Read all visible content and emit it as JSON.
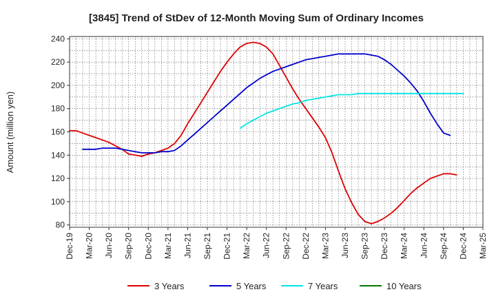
{
  "chart_data": {
    "type": "line",
    "title": "[3845]  Trend of StDev of 12-Month Moving Sum of Ordinary Incomes",
    "ylabel": "Amount (million yen)",
    "xlabel": "",
    "ylim": [
      78,
      242
    ],
    "yticks": [
      80,
      100,
      120,
      140,
      160,
      180,
      200,
      220,
      240
    ],
    "x_tick_labels": [
      "Dec-19",
      "Mar-20",
      "Jun-20",
      "Sep-20",
      "Dec-20",
      "Mar-21",
      "Jun-21",
      "Sep-21",
      "Dec-21",
      "Mar-22",
      "Jun-22",
      "Sep-22",
      "Dec-22",
      "Mar-23",
      "Jun-23",
      "Sep-23",
      "Dec-23",
      "Mar-24",
      "Jun-24",
      "Sep-24",
      "Dec-24",
      "Mar-25"
    ],
    "grid": true,
    "legend_position": "bottom",
    "series": [
      {
        "name": "3 Years",
        "color": "#dd0000",
        "points": [
          [
            "Dec-19",
            161
          ],
          [
            "Jan-20",
            161
          ],
          [
            "Feb-20",
            159
          ],
          [
            "Mar-20",
            157
          ],
          [
            "Apr-20",
            155
          ],
          [
            "May-20",
            153
          ],
          [
            "Jun-20",
            151
          ],
          [
            "Jul-20",
            148
          ],
          [
            "Aug-20",
            145
          ],
          [
            "Sep-20",
            141
          ],
          [
            "Oct-20",
            140
          ],
          [
            "Nov-20",
            139
          ],
          [
            "Dec-20",
            141
          ],
          [
            "Jan-21",
            142
          ],
          [
            "Feb-21",
            144
          ],
          [
            "Mar-21",
            146
          ],
          [
            "Apr-21",
            150
          ],
          [
            "May-21",
            157
          ],
          [
            "Jun-21",
            167
          ],
          [
            "Jul-21",
            176
          ],
          [
            "Aug-21",
            185
          ],
          [
            "Sep-21",
            194
          ],
          [
            "Oct-21",
            203
          ],
          [
            "Nov-21",
            212
          ],
          [
            "Dec-21",
            220
          ],
          [
            "Jan-22",
            227
          ],
          [
            "Feb-22",
            233
          ],
          [
            "Mar-22",
            236
          ],
          [
            "Apr-22",
            237
          ],
          [
            "May-22",
            236
          ],
          [
            "Jun-22",
            233
          ],
          [
            "Jul-22",
            227
          ],
          [
            "Aug-22",
            217
          ],
          [
            "Sep-22",
            207
          ],
          [
            "Oct-22",
            197
          ],
          [
            "Nov-22",
            188
          ],
          [
            "Dec-22",
            180
          ],
          [
            "Jan-23",
            172
          ],
          [
            "Feb-23",
            164
          ],
          [
            "Mar-23",
            155
          ],
          [
            "Apr-23",
            142
          ],
          [
            "May-23",
            126
          ],
          [
            "Jun-23",
            111
          ],
          [
            "Jul-23",
            99
          ],
          [
            "Aug-23",
            89
          ],
          [
            "Sep-23",
            83
          ],
          [
            "Oct-23",
            81
          ],
          [
            "Nov-23",
            83
          ],
          [
            "Dec-23",
            86
          ],
          [
            "Jan-24",
            90
          ],
          [
            "Feb-24",
            95
          ],
          [
            "Mar-24",
            101
          ],
          [
            "Apr-24",
            107
          ],
          [
            "May-24",
            112
          ],
          [
            "Jun-24",
            116
          ],
          [
            "Jul-24",
            120
          ],
          [
            "Aug-24",
            122
          ],
          [
            "Sep-24",
            124
          ],
          [
            "Oct-24",
            124
          ],
          [
            "Nov-24",
            123
          ]
        ]
      },
      {
        "name": "5 Years",
        "color": "#0000cc",
        "points": [
          [
            "Feb-20",
            145
          ],
          [
            "Mar-20",
            145
          ],
          [
            "Apr-20",
            145
          ],
          [
            "May-20",
            146
          ],
          [
            "Jun-20",
            146
          ],
          [
            "Jul-20",
            146
          ],
          [
            "Aug-20",
            145
          ],
          [
            "Sep-20",
            144
          ],
          [
            "Oct-20",
            143
          ],
          [
            "Nov-20",
            142
          ],
          [
            "Dec-20",
            142
          ],
          [
            "Jan-21",
            142
          ],
          [
            "Feb-21",
            143
          ],
          [
            "Mar-21",
            143
          ],
          [
            "Apr-21",
            144
          ],
          [
            "May-21",
            148
          ],
          [
            "Jun-21",
            153
          ],
          [
            "Jul-21",
            158
          ],
          [
            "Aug-21",
            163
          ],
          [
            "Sep-21",
            168
          ],
          [
            "Oct-21",
            173
          ],
          [
            "Nov-21",
            178
          ],
          [
            "Dec-21",
            183
          ],
          [
            "Jan-22",
            188
          ],
          [
            "Feb-22",
            193
          ],
          [
            "Mar-22",
            198
          ],
          [
            "Apr-22",
            202
          ],
          [
            "May-22",
            206
          ],
          [
            "Jun-22",
            209
          ],
          [
            "Jul-22",
            212
          ],
          [
            "Aug-22",
            214
          ],
          [
            "Sep-22",
            216
          ],
          [
            "Oct-22",
            218
          ],
          [
            "Nov-22",
            220
          ],
          [
            "Dec-22",
            222
          ],
          [
            "Jan-23",
            223
          ],
          [
            "Feb-23",
            224
          ],
          [
            "Mar-23",
            225
          ],
          [
            "Apr-23",
            226
          ],
          [
            "May-23",
            227
          ],
          [
            "Jun-23",
            227
          ],
          [
            "Jul-23",
            227
          ],
          [
            "Aug-23",
            227
          ],
          [
            "Sep-23",
            227
          ],
          [
            "Oct-23",
            226
          ],
          [
            "Nov-23",
            225
          ],
          [
            "Dec-23",
            222
          ],
          [
            "Jan-24",
            218
          ],
          [
            "Feb-24",
            213
          ],
          [
            "Mar-24",
            208
          ],
          [
            "Apr-24",
            202
          ],
          [
            "May-24",
            195
          ],
          [
            "Jun-24",
            186
          ],
          [
            "Jul-24",
            176
          ],
          [
            "Aug-24",
            167
          ],
          [
            "Sep-24",
            159
          ],
          [
            "Oct-24",
            157
          ]
        ]
      },
      {
        "name": "7 Years",
        "color": "#00e5e5",
        "points": [
          [
            "Feb-22",
            163
          ],
          [
            "Mar-22",
            167
          ],
          [
            "Apr-22",
            170
          ],
          [
            "May-22",
            173
          ],
          [
            "Jun-22",
            176
          ],
          [
            "Jul-22",
            178
          ],
          [
            "Aug-22",
            180
          ],
          [
            "Sep-22",
            182
          ],
          [
            "Oct-22",
            184
          ],
          [
            "Nov-22",
            185
          ],
          [
            "Dec-22",
            187
          ],
          [
            "Jan-23",
            188
          ],
          [
            "Feb-23",
            189
          ],
          [
            "Mar-23",
            190
          ],
          [
            "Apr-23",
            191
          ],
          [
            "May-23",
            192
          ],
          [
            "Jun-23",
            192
          ],
          [
            "Jul-23",
            192
          ],
          [
            "Aug-23",
            193
          ],
          [
            "Sep-23",
            193
          ],
          [
            "Oct-23",
            193
          ],
          [
            "Nov-23",
            193
          ],
          [
            "Dec-23",
            193
          ],
          [
            "Jan-24",
            193
          ],
          [
            "Feb-24",
            193
          ],
          [
            "Mar-24",
            193
          ],
          [
            "Apr-24",
            193
          ],
          [
            "May-24",
            193
          ],
          [
            "Jun-24",
            193
          ],
          [
            "Jul-24",
            193
          ],
          [
            "Aug-24",
            193
          ],
          [
            "Sep-24",
            193
          ],
          [
            "Oct-24",
            193
          ],
          [
            "Nov-24",
            193
          ],
          [
            "Dec-24",
            193
          ]
        ]
      },
      {
        "name": "10 Years",
        "color": "#007700",
        "points": []
      }
    ]
  }
}
